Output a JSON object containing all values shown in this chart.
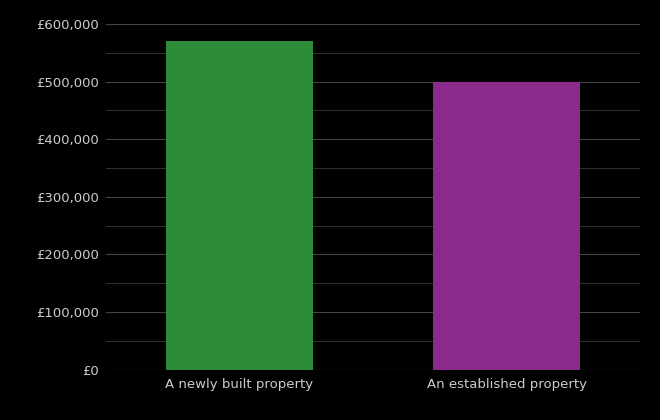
{
  "categories": [
    "A newly built property",
    "An established property"
  ],
  "values": [
    571000,
    500000
  ],
  "bar_colors": [
    "#2e8b3a",
    "#8b2a8b"
  ],
  "background_color": "#000000",
  "text_color": "#cccccc",
  "grid_color": "#444444",
  "ylim": [
    0,
    620000
  ],
  "ytick_major_step": 100000,
  "ytick_minor_step": 50000,
  "bar_width": 0.55,
  "figsize": [
    6.6,
    4.2
  ],
  "dpi": 100
}
